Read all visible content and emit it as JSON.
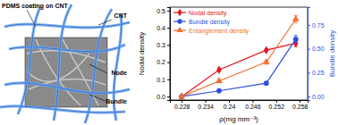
{
  "diagram": {
    "labels": [
      "PDMS coating on CNT",
      "CNT",
      "Node",
      "Bundle"
    ]
  },
  "chart_data": {
    "type": "line",
    "x_label": "ρ(mg mm⁻³)",
    "y_label": "Nodal density",
    "y2_label": "Bundle density",
    "xlim": [
      0.225,
      0.26
    ],
    "xticks": [
      0.228,
      0.234,
      0.24,
      0.246,
      0.252,
      0.258
    ],
    "ylim": [
      -0.02,
      0.52
    ],
    "yticks": [
      {
        "value": 0,
        "label": "0.0"
      },
      0.1,
      0.2,
      0.3,
      0.4,
      0.5
    ],
    "y2lim": [
      -0.036,
      0.936
    ],
    "y2ticks": [
      {
        "value": 0,
        "label": "0.00"
      },
      0.25,
      {
        "value": 0.5,
        "label": "0.50"
      },
      0.75
    ],
    "legend": "upper left",
    "series": [
      {
        "name": "Nodal density",
        "color": "#e8141c",
        "marker": "diamond",
        "line_style": "solid",
        "x": [
          0.228,
          0.2375,
          0.2495,
          0.257
        ],
        "values": [
          0.0,
          0.155,
          0.27,
          0.31
        ],
        "errors": [
          0.004,
          0.008,
          0.008,
          0.02
        ]
      },
      {
        "name": "Bundle density",
        "color": "#2d4fe0",
        "marker": "circle",
        "line_style": "solid",
        "axis": "y2",
        "x": [
          0.228,
          0.2375,
          0.2495,
          0.257
        ],
        "values": [
          0.0,
          0.06,
          0.14,
          0.6
        ],
        "errors": [
          0.006,
          0.01,
          0.012,
          0.04
        ]
      },
      {
        "name": "Entanglement density",
        "color": "#f07030",
        "marker": "triangle",
        "line_style": "solid",
        "x": [
          0.228,
          0.2375,
          0.2495,
          0.257
        ],
        "values": [
          0.0,
          0.09,
          0.2,
          0.45
        ],
        "errors": [
          0.004,
          0.01,
          0.012,
          0.02
        ]
      }
    ]
  }
}
